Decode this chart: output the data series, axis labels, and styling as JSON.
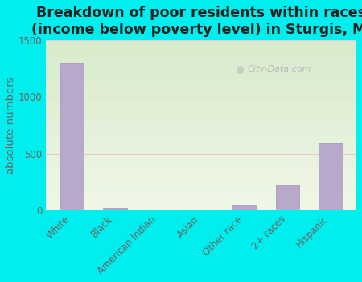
{
  "title": "Breakdown of poor residents within races\n(income below poverty level) in Sturgis, MI",
  "categories": [
    "White",
    "Black",
    "American Indian",
    "Asian",
    "Other race",
    "2+ races",
    "Hispanic"
  ],
  "values": [
    1300,
    20,
    0,
    0,
    40,
    220,
    590
  ],
  "bar_color": "#b8a8cc",
  "bar_edge_color": "#a090bb",
  "ylabel": "absolute numbers",
  "ylim": [
    0,
    1500
  ],
  "yticks": [
    0,
    500,
    1000,
    1500
  ],
  "bg_color": "#00eeee",
  "plot_bg_color_top": "#d8eacc",
  "plot_bg_color_bottom": "#f0f8e8",
  "grid_color": "#e8c8c8",
  "title_fontsize": 12.5,
  "tick_fontsize": 8.5,
  "ylabel_fontsize": 9.5,
  "watermark": "City-Data.com"
}
